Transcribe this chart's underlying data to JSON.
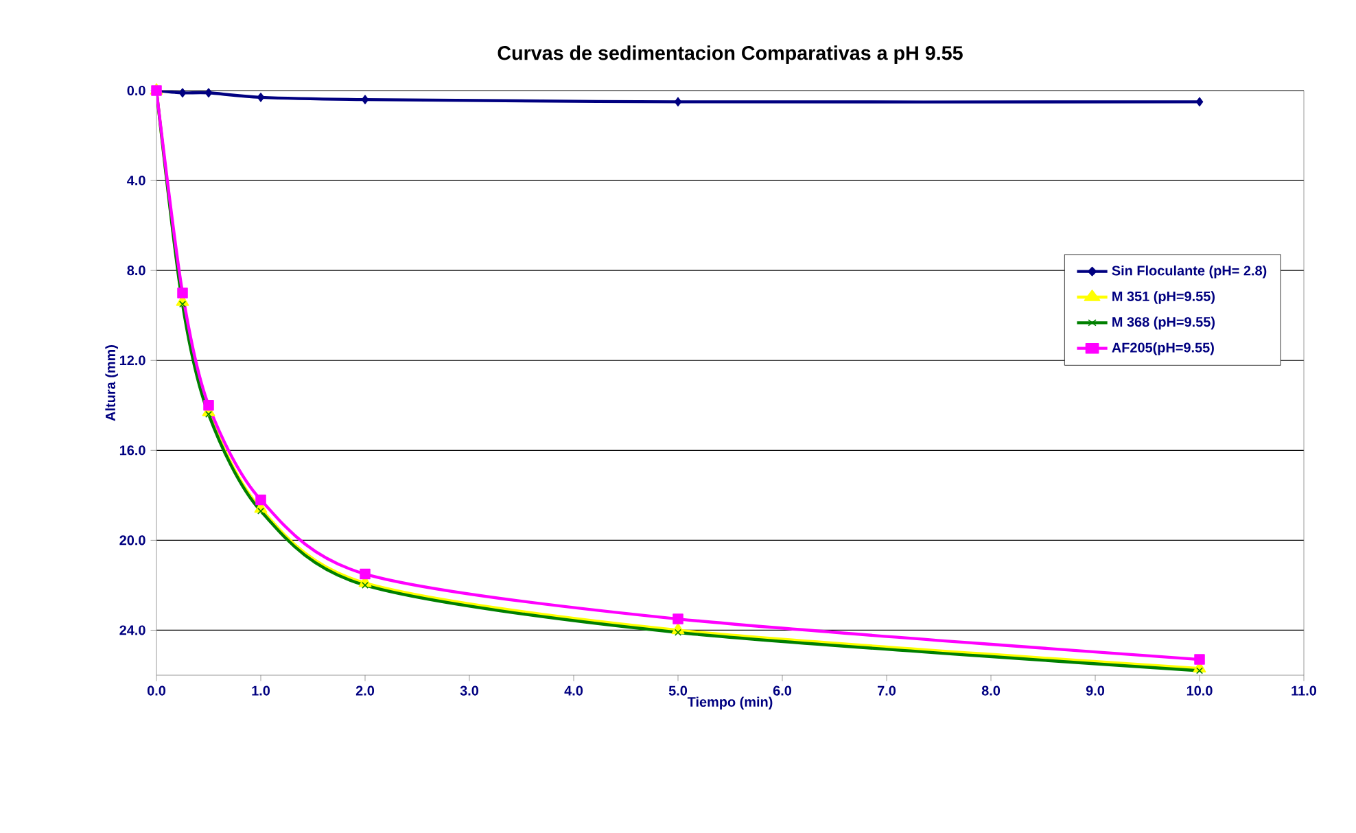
{
  "chart_data": {
    "type": "line",
    "title": "Curvas de sedimentacion Comparativas a pH 9.55",
    "xlabel": "Tiempo (min)",
    "ylabel": "Altura (mm)",
    "x": [
      0,
      0.25,
      0.5,
      1,
      2,
      5,
      10
    ],
    "series": [
      {
        "name": "Sin Floculante  (pH= 2.8)",
        "color": "#000080",
        "marker": "diamond",
        "values": [
          0,
          0.1,
          0.1,
          0.3,
          0.4,
          0.5,
          0.5
        ]
      },
      {
        "name": "M 351  (pH=9.55)",
        "color": "#ffff00",
        "marker": "triangle",
        "values": [
          0,
          9.4,
          14.3,
          18.6,
          21.9,
          24.0,
          25.7
        ]
      },
      {
        "name": "M 368  (pH=9.55)",
        "color": "#008000",
        "marker": "cross",
        "values": [
          0,
          9.5,
          14.4,
          18.7,
          22.0,
          24.1,
          25.8
        ]
      },
      {
        "name": "AF205(pH=9.55)",
        "color": "#ff00ff",
        "marker": "square",
        "values": [
          0,
          9.0,
          14.0,
          18.2,
          21.5,
          23.5,
          25.3
        ]
      }
    ],
    "xlim": [
      0,
      11
    ],
    "xticks": [
      {
        "value": 0,
        "label": "0.0"
      },
      {
        "value": 1,
        "label": "1.0"
      },
      {
        "value": 2,
        "label": "2.0"
      },
      {
        "value": 3,
        "label": "3.0"
      },
      {
        "value": 4,
        "label": "4.0"
      },
      {
        "value": 5,
        "label": "5.0"
      },
      {
        "value": 6,
        "label": "6.0"
      },
      {
        "value": 7,
        "label": "7.0"
      },
      {
        "value": 8,
        "label": "8.0"
      },
      {
        "value": 9,
        "label": "9.0"
      },
      {
        "value": 10,
        "label": "10.0"
      },
      {
        "value": 11,
        "label": "11.0"
      }
    ],
    "ylim": [
      26,
      0
    ],
    "yticks": [
      {
        "value": 0,
        "label": "0.0"
      },
      {
        "value": 4,
        "label": "4.0"
      },
      {
        "value": 8,
        "label": "8.0"
      },
      {
        "value": 12,
        "label": "12.0"
      },
      {
        "value": 16,
        "label": "16.0"
      },
      {
        "value": 20,
        "label": "20.0"
      },
      {
        "value": 24,
        "label": "24.0"
      }
    ],
    "grid": "y",
    "legend": "right",
    "line_style": "solid"
  }
}
